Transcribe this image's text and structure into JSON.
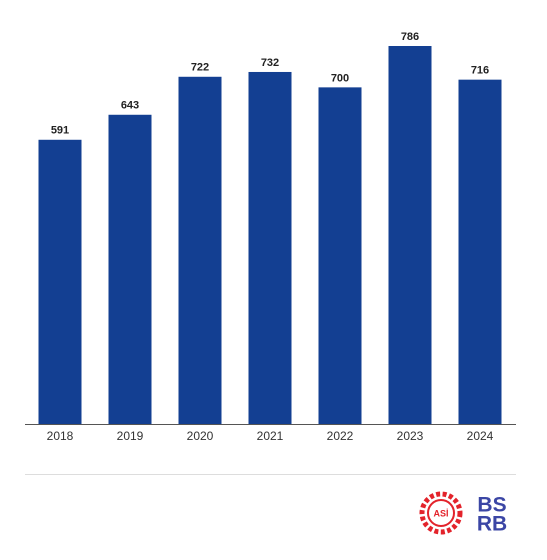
{
  "chart_data": {
    "type": "bar",
    "categories": [
      "2018",
      "2019",
      "2020",
      "2021",
      "2022",
      "2023",
      "2024"
    ],
    "values": [
      591,
      643,
      722,
      732,
      700,
      786,
      716
    ],
    "color": "#133f92"
  },
  "logos": {
    "asi": "ASİ",
    "bsrb_top": "BS",
    "bsrb_bottom": "RB"
  }
}
